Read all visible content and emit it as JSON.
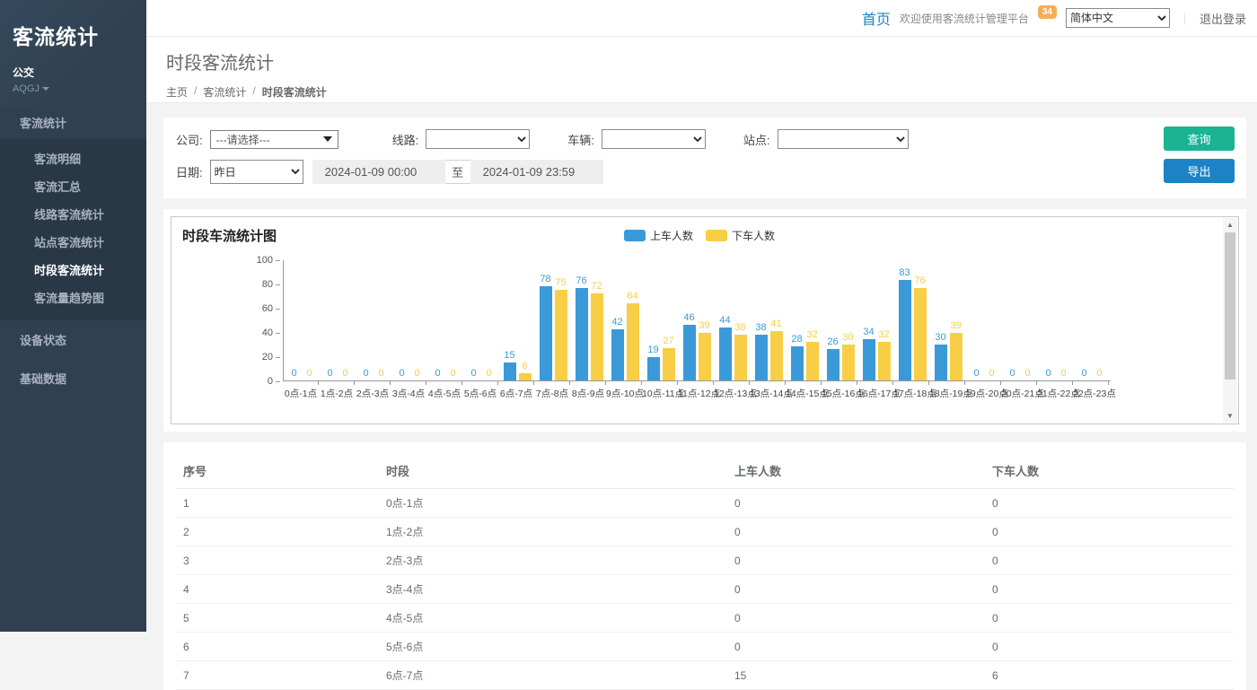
{
  "accent_colors": {
    "sidebar_bg": "#2f4050",
    "sidebar_sub_bg": "#293846",
    "green_button": "#1ab394",
    "blue_button": "#1c84c6",
    "badge_orange": "#f8ac59",
    "bar_blue": "#3a9ad9",
    "bar_yellow": "#f8ce46"
  },
  "sidebar": {
    "brand": "客流统计",
    "org": "公交",
    "user": "AQGJ",
    "sections": [
      {
        "label": "客流统计",
        "active": true,
        "children": [
          "客流明细",
          "客流汇总",
          "线路客流统计",
          "站点客流统计",
          "时段客流统计",
          "客流量趋势图"
        ]
      },
      {
        "label": "设备状态"
      },
      {
        "label": "基础数据"
      }
    ],
    "active_child": "时段客流统计"
  },
  "topbar": {
    "home_link": "首页",
    "welcome": "欢迎使用客流统计管理平台",
    "badge_count": "34",
    "language": "简体中文",
    "separator": "｜",
    "logout": "退出登录"
  },
  "page": {
    "title": "时段客流统计",
    "breadcrumb": [
      "主页",
      "客流统计",
      "时段客流统计"
    ]
  },
  "filters": {
    "company_label": "公司:",
    "company_value": "---请选择---",
    "line_label": "线路:",
    "vehicle_label": "车辆:",
    "station_label": "站点:",
    "date_label": "日期:",
    "date_preset": "昨日",
    "date_from": "2024-01-09 00:00",
    "date_to_separator": "至",
    "date_to": "2024-01-09 23:59",
    "query_button": "查询",
    "export_button": "导出"
  },
  "chart_data": {
    "type": "bar",
    "title": "时段车流统计图",
    "categories": [
      "0点-1点",
      "1点-2点",
      "2点-3点",
      "3点-4点",
      "4点-5点",
      "5点-6点",
      "6点-7点",
      "7点-8点",
      "8点-9点",
      "9点-10点",
      "10点-11点",
      "11点-12点",
      "12点-13点",
      "13点-14点",
      "14点-15点",
      "15点-16点",
      "16点-17点",
      "17点-18点",
      "18点-19点",
      "19点-20点",
      "20点-21点",
      "21点-22点",
      "22点-23点"
    ],
    "series": [
      {
        "name": "上车人数",
        "color": "#3a9ad9",
        "values": [
          0,
          0,
          0,
          0,
          0,
          0,
          15,
          78,
          76,
          42,
          19,
          46,
          44,
          38,
          28,
          26,
          34,
          83,
          30,
          0,
          0,
          0,
          0
        ]
      },
      {
        "name": "下车人数",
        "color": "#f8ce46",
        "values": [
          0,
          0,
          0,
          0,
          0,
          0,
          6,
          75,
          72,
          64,
          27,
          39,
          38,
          41,
          32,
          30,
          32,
          76,
          39,
          0,
          0,
          0,
          0
        ]
      }
    ],
    "xlabel": "",
    "ylabel": "",
    "ylim": [
      0,
      100
    ],
    "yticks": [
      0,
      20,
      40,
      60,
      80,
      100
    ],
    "grid": false,
    "legend_position": "top-center"
  },
  "table": {
    "headers": [
      "序号",
      "时段",
      "上车人数",
      "下车人数"
    ],
    "rows": [
      [
        "1",
        "0点-1点",
        "0",
        "0"
      ],
      [
        "2",
        "1点-2点",
        "0",
        "0"
      ],
      [
        "3",
        "2点-3点",
        "0",
        "0"
      ],
      [
        "4",
        "3点-4点",
        "0",
        "0"
      ],
      [
        "5",
        "4点-5点",
        "0",
        "0"
      ],
      [
        "6",
        "5点-6点",
        "0",
        "0"
      ],
      [
        "7",
        "6点-7点",
        "15",
        "6"
      ]
    ]
  }
}
